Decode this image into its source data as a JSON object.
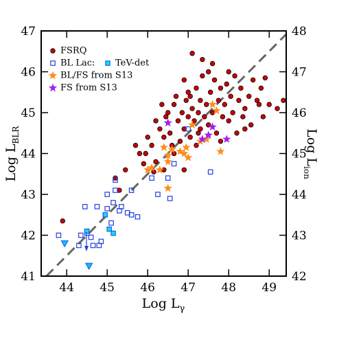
{
  "chart_data": {
    "type": "scatter",
    "x_label": "Log L",
    "x_label_sub": "γ",
    "y_label": "Log L",
    "y_label_sub": "BLR",
    "y2_label": "Log L",
    "y2_label_sub": "ion",
    "xlim": [
      43.37,
      49.42
    ],
    "ylim": [
      41,
      47
    ],
    "y2lim": [
      42,
      48
    ],
    "xticks": [
      44,
      45,
      46,
      47,
      48,
      49
    ],
    "yticks": [
      41,
      42,
      43,
      44,
      45,
      46,
      47
    ],
    "y2ticks": [
      42,
      43,
      44,
      45,
      46,
      47,
      48
    ],
    "legend": "upper left",
    "reference_line": {
      "x": [
        43.5,
        49.42
      ],
      "y": [
        41,
        46.92
      ],
      "color": "#666666"
    },
    "series": [
      {
        "name": "FSRQ",
        "marker": "circle",
        "color": "#cc0000",
        "x": [
          43.9,
          45.2,
          45.3,
          45.45,
          45.7,
          45.9,
          45.95,
          46.0,
          46.1,
          46.15,
          46.2,
          46.3,
          46.35,
          46.4,
          46.45,
          46.5,
          46.55,
          46.6,
          46.65,
          46.7,
          46.75,
          46.8,
          46.85,
          46.9,
          46.95,
          47.0,
          47.0,
          47.05,
          47.1,
          47.15,
          47.2,
          47.25,
          47.3,
          47.3,
          47.35,
          47.4,
          47.45,
          47.5,
          47.5,
          47.55,
          47.6,
          47.65,
          47.7,
          47.75,
          47.8,
          47.85,
          47.9,
          47.95,
          48.0,
          48.05,
          48.1,
          48.15,
          48.2,
          48.25,
          48.3,
          48.35,
          48.4,
          48.5,
          48.55,
          48.6,
          48.7,
          48.75,
          48.8,
          48.85,
          48.9,
          49.0,
          49.2,
          49.35,
          47.1,
          47.35,
          46.9,
          47.2,
          46.2,
          46.4,
          47.6,
          48.0,
          45.8,
          46.9,
          47.05,
          47.25,
          48.4,
          47.8,
          46.65
        ],
        "y": [
          42.35,
          43.4,
          43.1,
          43.6,
          44.2,
          43.75,
          44.0,
          44.4,
          44.2,
          43.55,
          44.8,
          44.6,
          45.2,
          44.4,
          44.9,
          45.0,
          44.5,
          44.2,
          45.2,
          45.4,
          44.8,
          44.3,
          45.0,
          44.6,
          45.3,
          44.9,
          45.5,
          44.4,
          45.1,
          44.8,
          45.6,
          45.0,
          44.6,
          45.3,
          45.9,
          44.9,
          45.2,
          46.0,
          44.7,
          45.5,
          45.0,
          45.8,
          44.5,
          45.3,
          45.6,
          44.9,
          45.2,
          45.7,
          44.8,
          45.4,
          45.0,
          45.9,
          44.5,
          45.3,
          45.6,
          44.9,
          45.1,
          45.4,
          44.7,
          45.8,
          45.3,
          45.2,
          45.6,
          44.9,
          45.85,
          45.2,
          45.1,
          45.3,
          46.45,
          46.3,
          43.6,
          44.2,
          43.8,
          43.6,
          46.2,
          46.0,
          44.0,
          45.8,
          45.4,
          44.5,
          44.6,
          44.3,
          44.0
        ]
      },
      {
        "name": "BL Lac:",
        "marker": "open-square",
        "color": "#1f3fdd",
        "x": [
          43.8,
          44.3,
          44.35,
          44.45,
          44.5,
          44.6,
          44.65,
          44.75,
          44.8,
          44.85,
          45.0,
          45.0,
          45.1,
          45.15,
          45.2,
          45.2,
          45.3,
          45.35,
          45.5,
          45.6,
          45.6,
          45.75,
          46.1,
          46.25,
          46.5,
          46.55,
          46.65,
          47.0,
          47.55
        ],
        "y": [
          42.0,
          41.75,
          42.0,
          42.7,
          42.05,
          41.95,
          41.75,
          42.7,
          41.75,
          41.85,
          42.65,
          43.0,
          42.3,
          42.8,
          43.35,
          43.1,
          42.6,
          42.7,
          42.55,
          42.5,
          43.1,
          42.45,
          43.4,
          43.0,
          43.4,
          42.9,
          43.75,
          44.6,
          43.55
        ]
      },
      {
        "name": "TeV-det",
        "marker": "filled-square",
        "color": "#00e5ee",
        "x": [
          44.5,
          44.95,
          45.05,
          45.15
        ],
        "y": [
          42.1,
          42.5,
          42.15,
          42.05
        ]
      },
      {
        "name": "BL/FS from S13",
        "marker": "star",
        "color": "#ff8c1a",
        "x": [
          46.0,
          46.1,
          46.3,
          46.4,
          46.5,
          46.5,
          46.6,
          46.8,
          46.9,
          46.95,
          47.0,
          47.1,
          47.3,
          47.45,
          47.6,
          47.7,
          47.8,
          46.5
        ],
        "y": [
          43.6,
          43.65,
          43.6,
          44.15,
          43.15,
          43.95,
          44.1,
          44.05,
          44.0,
          44.15,
          43.9,
          44.7,
          44.3,
          44.35,
          45.2,
          45.05,
          44.05,
          43.8
        ]
      },
      {
        "name": "FS from S13",
        "marker": "star",
        "color": "#a020f0",
        "x": [
          46.5,
          47.35,
          47.5,
          47.6,
          47.95
        ],
        "y": [
          44.75,
          44.35,
          44.45,
          44.65,
          44.35
        ]
      }
    ],
    "upper_limits": {
      "marker": "triangle",
      "color": "#00bfff",
      "x": [
        43.95,
        44.55
      ],
      "y": [
        41.8,
        41.25
      ]
    }
  }
}
